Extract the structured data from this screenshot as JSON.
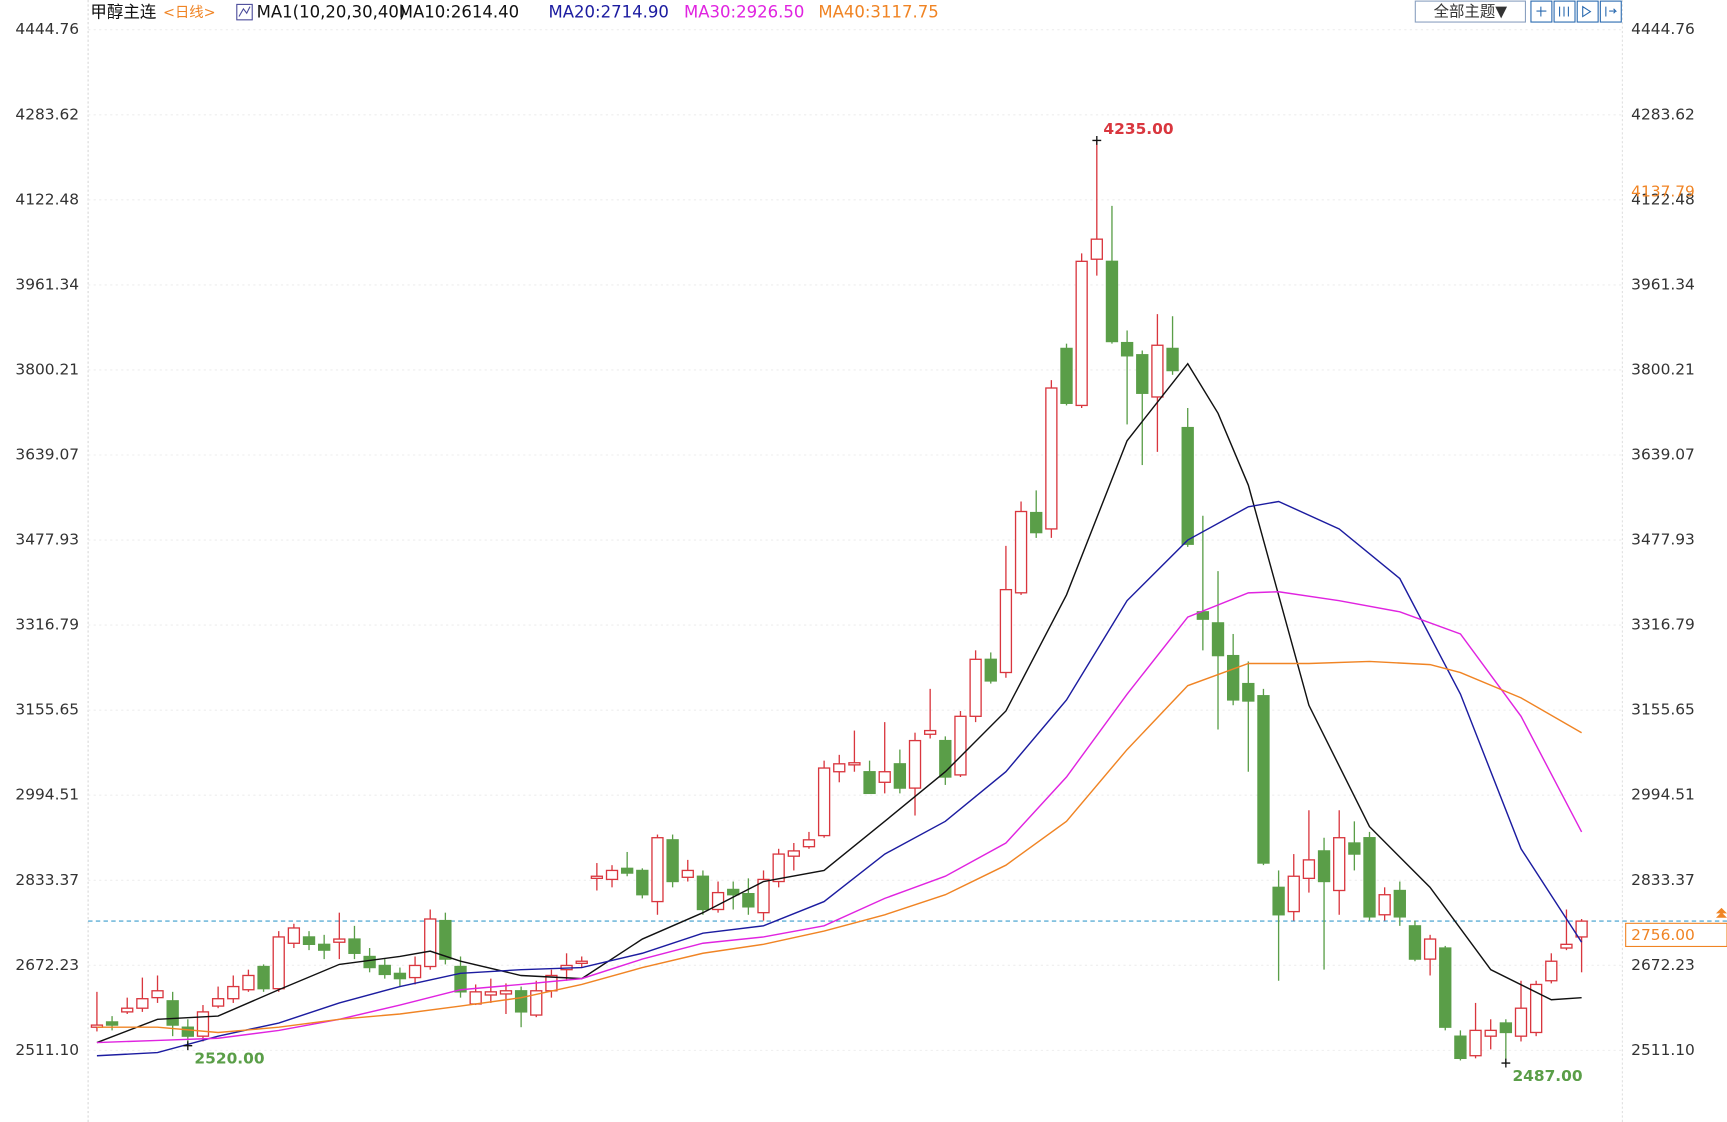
{
  "header": {
    "theme_button": "全部主题▼"
  },
  "chart_data": {
    "type": "candlestick",
    "title": "甲醇主连",
    "period": "<日线>",
    "indicator": "MA1(10,20,30,40)",
    "ylim": [
      2375.4,
      4501.1
    ],
    "yticks": [
      4444.76,
      4283.62,
      4122.48,
      3961.34,
      3800.21,
      3639.07,
      3477.93,
      3316.79,
      3155.65,
      2994.51,
      2833.37,
      2672.23,
      {
        "value": 2511.1,
        "label": "2511.10"
      }
    ],
    "grid": true,
    "up_color": "#d9363e",
    "down_color": "#5a9e48",
    "open": [
      2555,
      2565,
      2584,
      2591,
      2611,
      2605,
      2555,
      2538,
      2595,
      2609,
      2626,
      2670,
      2628,
      2714,
      2726,
      2712,
      2716,
      2722,
      2689,
      2672,
      2657,
      2649,
      2670,
      2757,
      2670,
      2599,
      2616,
      2618,
      2624,
      2578,
      2624,
      2664,
      2676,
      2837,
      2835,
      2856,
      2852,
      2793,
      2910,
      2839,
      2841,
      2778,
      2816,
      2808,
      2772,
      2831,
      2879,
      2897,
      2918,
      3039,
      3052,
      3039,
      3019,
      3054,
      3008,
      3110,
      3098,
      3033,
      3144,
      3252,
      3227,
      3378,
      3530,
      3499,
      3841,
      3733,
      4010,
      4006,
      3852,
      3829,
      3749,
      3841,
      3691,
      3342,
      3321,
      3259,
      3206,
      3183,
      2820,
      2774,
      2837,
      2889,
      2814,
      2904,
      2914,
      2768,
      2814,
      2747,
      2684,
      2705,
      2538,
      2501,
      2538,
      2563,
      2538,
      2545,
      2643,
      2705,
      2726
    ],
    "high": [
      2622,
      2576,
      2611,
      2649,
      2653,
      2622,
      2570,
      2597,
      2632,
      2653,
      2664,
      2674,
      2737,
      2751,
      2737,
      2730,
      2772,
      2747,
      2705,
      2684,
      2668,
      2689,
      2778,
      2772,
      2689,
      2636,
      2647,
      2638,
      2632,
      2643,
      2664,
      2695,
      2689,
      2866,
      2862,
      2887,
      2856,
      2920,
      2920,
      2872,
      2852,
      2831,
      2831,
      2837,
      2852,
      2893,
      2904,
      2925,
      3060,
      3071,
      3117,
      3060,
      3133,
      3081,
      3113,
      3196,
      3106,
      3154,
      3269,
      3265,
      3467,
      3551,
      3572,
      3781,
      3850,
      4021,
      4235,
      4111,
      3875,
      3837,
      3906,
      3902,
      3728,
      3524,
      3419,
      3300,
      3248,
      3196,
      2852,
      2883,
      2966,
      2914,
      2966,
      2945,
      2925,
      2820,
      2831,
      2757,
      2730,
      2709,
      2549,
      2601,
      2570,
      2570,
      2643,
      2643,
      2695,
      2778,
      2760
    ],
    "low": [
      2547,
      2549,
      2580,
      2584,
      2601,
      2538,
      2520,
      2528,
      2591,
      2601,
      2622,
      2622,
      2622,
      2705,
      2701,
      2684,
      2684,
      2684,
      2659,
      2647,
      2632,
      2636,
      2664,
      2674,
      2611,
      2597,
      2601,
      2580,
      2555,
      2574,
      2611,
      2643,
      2668,
      2814,
      2820,
      2841,
      2799,
      2768,
      2820,
      2831,
      2768,
      2772,
      2778,
      2768,
      2757,
      2820,
      2852,
      2893,
      2914,
      3019,
      3039,
      2998,
      2998,
      2998,
      2956,
      3102,
      3014,
      3029,
      3133,
      3206,
      3217,
      3374,
      3482,
      3482,
      3733,
      3728,
      3979,
      3850,
      3697,
      3620,
      3645,
      3791,
      3465,
      3269,
      3119,
      3165,
      3039,
      2862,
      2643,
      2757,
      2810,
      2664,
      2768,
      2852,
      2757,
      2757,
      2747,
      2680,
      2653,
      2549,
      2492,
      2496,
      2513,
      2487,
      2528,
      2538,
      2638,
      2701,
      2659
    ],
    "close": [
      2559,
      2559,
      2591,
      2609,
      2624,
      2559,
      2538,
      2584,
      2609,
      2632,
      2653,
      2628,
      2726,
      2743,
      2712,
      2701,
      2722,
      2695,
      2668,
      2655,
      2647,
      2672,
      2760,
      2684,
      2622,
      2622,
      2622,
      2624,
      2584,
      2624,
      2653,
      2672,
      2680,
      2841,
      2852,
      2847,
      2806,
      2914,
      2831,
      2852,
      2778,
      2810,
      2806,
      2783,
      2835,
      2883,
      2889,
      2910,
      3046,
      3054,
      3056,
      2998,
      3039,
      3008,
      3098,
      3117,
      3029,
      3144,
      3252,
      3211,
      3384,
      3532,
      3492,
      3766,
      3737,
      4006,
      4048,
      3854,
      3827,
      3756,
      3847,
      3799,
      3470,
      3328,
      3259,
      3175,
      3173,
      2866,
      2768,
      2841,
      2872,
      2831,
      2914,
      2883,
      2764,
      2806,
      2764,
      2684,
      2722,
      2555,
      2496,
      2549,
      2549,
      2545,
      2591,
      2636,
      2680,
      2712,
      2756
    ],
    "series": [
      {
        "name": "MA10:2614.40",
        "color": "#111111",
        "x": [
          0,
          4,
          8,
          12,
          16,
          20,
          22,
          24,
          28,
          32,
          36,
          40,
          44,
          48,
          52,
          56,
          60,
          64,
          68,
          72,
          74,
          76,
          80,
          84,
          88,
          92,
          96,
          98
        ],
        "values": [
          2526,
          2570,
          2576,
          2626,
          2674,
          2689,
          2699,
          2680,
          2653,
          2647,
          2722,
          2772,
          2831,
          2852,
          2945,
          3039,
          3154,
          3374,
          3666,
          3812,
          3718,
          3582,
          3165,
          2935,
          2820,
          2664,
          2607,
          2611
        ]
      },
      {
        "name": "MA20:2714.90",
        "color": "#1c1ca0",
        "x": [
          0,
          4,
          8,
          12,
          16,
          20,
          24,
          28,
          32,
          36,
          40,
          44,
          48,
          52,
          56,
          60,
          64,
          68,
          72,
          76,
          78,
          82,
          86,
          90,
          94,
          98
        ],
        "values": [
          2501,
          2507,
          2538,
          2563,
          2601,
          2632,
          2657,
          2664,
          2668,
          2695,
          2733,
          2747,
          2793,
          2883,
          2945,
          3039,
          3175,
          3363,
          3478,
          3541,
          3551,
          3499,
          3405,
          3186,
          2893,
          2716
        ]
      },
      {
        "name": "MA30:2926.50",
        "color": "#e024e0",
        "x": [
          0,
          4,
          8,
          12,
          16,
          20,
          24,
          28,
          32,
          36,
          40,
          44,
          48,
          52,
          56,
          60,
          64,
          68,
          72,
          76,
          78,
          82,
          86,
          90,
          94,
          98
        ],
        "values": [
          2526,
          2530,
          2534,
          2549,
          2570,
          2597,
          2626,
          2636,
          2647,
          2684,
          2714,
          2726,
          2747,
          2799,
          2841,
          2904,
          3029,
          3186,
          3332,
          3378,
          3380,
          3363,
          3342,
          3300,
          3144,
          2925
        ]
      },
      {
        "name": "MA40:3117.75",
        "color": "#f08424",
        "x": [
          0,
          4,
          8,
          12,
          16,
          20,
          24,
          28,
          32,
          36,
          40,
          44,
          48,
          52,
          56,
          60,
          64,
          68,
          72,
          76,
          80,
          84,
          88,
          90,
          94,
          98
        ],
        "values": [
          2555,
          2555,
          2545,
          2555,
          2570,
          2580,
          2595,
          2611,
          2636,
          2668,
          2695,
          2712,
          2737,
          2768,
          2806,
          2862,
          2945,
          3081,
          3202,
          3244,
          3244,
          3248,
          3242,
          3227,
          3179,
          3113
        ]
      }
    ],
    "annotations": [
      {
        "value": 4235,
        "label": "4235.00"
      },
      {
        "value": 2520,
        "label": "2520.00"
      },
      {
        "value": 2487,
        "label": "2487.00"
      }
    ],
    "last_price": {
      "value": 2756,
      "label": "2756.00"
    },
    "right_marker": 4137.79
  }
}
